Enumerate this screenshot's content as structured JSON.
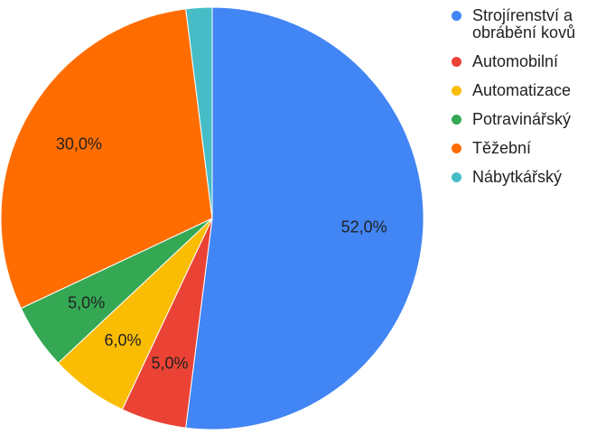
{
  "chart_data": {
    "type": "pie",
    "categories": [
      "Strojírenství a obrábění kovů",
      "Automobilní",
      "Automatizace",
      "Potravinářský",
      "Těžební",
      "Nábytkářský"
    ],
    "values": [
      52.0,
      5.0,
      6.0,
      5.0,
      30.0,
      2.0
    ],
    "data_labels": [
      "52,0%",
      "5,0%",
      "6,0%",
      "5,0%",
      "30,0%",
      ""
    ],
    "colors": [
      "#4285F4",
      "#EA4335",
      "#FBBC04",
      "#34A853",
      "#FF6D01",
      "#46BDC6"
    ],
    "legend_position": "right",
    "start_angle": "top, clockwise"
  }
}
